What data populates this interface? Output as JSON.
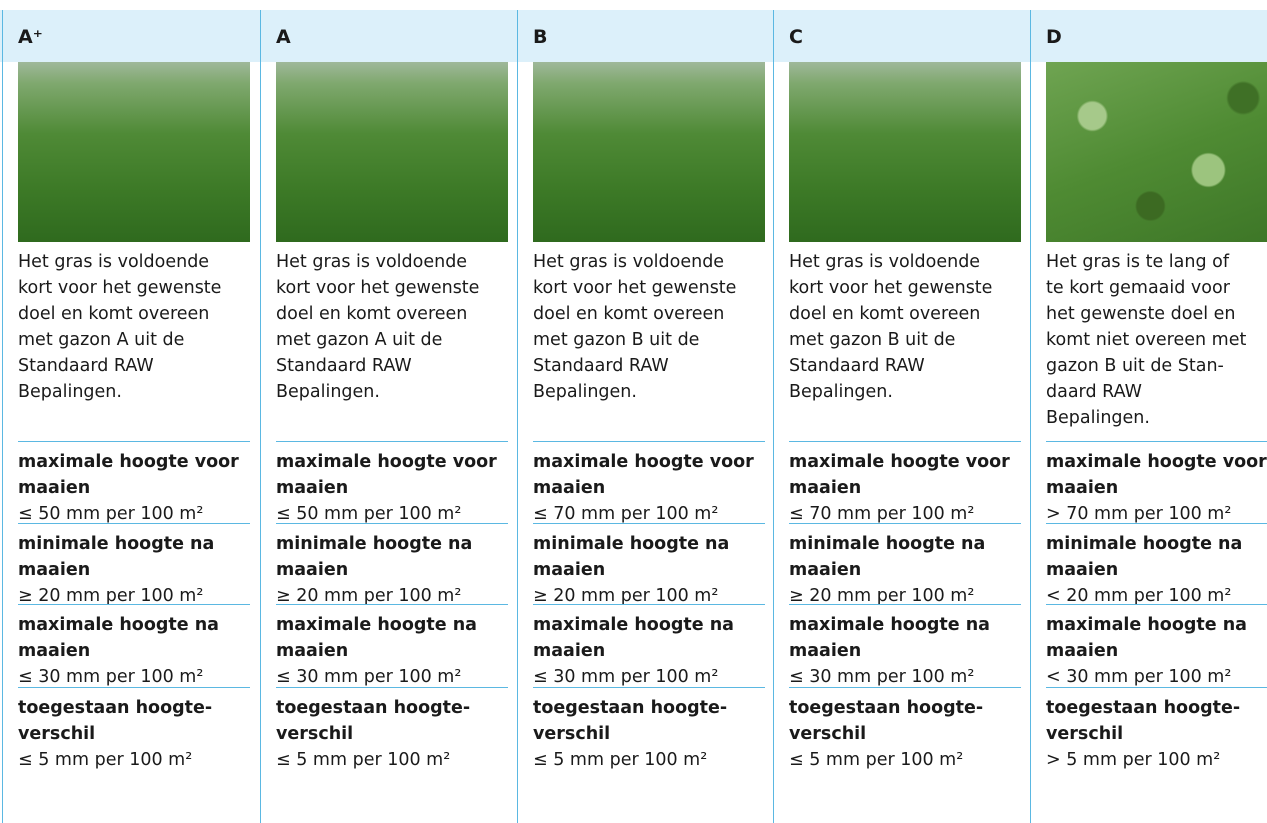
{
  "columns": [
    {
      "grade": "A⁺",
      "description_lines": [
        "Het gras is voldoende",
        "kort voor het gewenste",
        "doel en komt overeen",
        "met gazon A uit de",
        "Standaard RAW",
        "Bepalingen."
      ],
      "criteria": [
        {
          "label_lines": [
            "maximale hoogte voor",
            "maaien"
          ],
          "value": "≤ 50 mm per 100 m²"
        },
        {
          "label_lines": [
            "minimale hoogte na",
            "maaien"
          ],
          "value": "≥ 20 mm per 100 m²"
        },
        {
          "label_lines": [
            "maximale hoogte na",
            "maaien"
          ],
          "value": "≤ 30 mm per 100 m²"
        },
        {
          "label_lines": [
            "toegestaan hoogte-",
            "verschil"
          ],
          "value": "≤ 5 mm per 100 m²"
        }
      ]
    },
    {
      "grade": "A",
      "description_lines": [
        "Het gras is voldoende",
        "kort voor het gewenste",
        "doel en komt overeen",
        "met gazon A uit de",
        "Standaard RAW",
        "Bepalingen."
      ],
      "criteria": [
        {
          "label_lines": [
            "maximale hoogte voor",
            "maaien"
          ],
          "value": "≤ 50 mm per 100 m²"
        },
        {
          "label_lines": [
            "minimale hoogte na",
            "maaien"
          ],
          "value": "≥ 20 mm per 100 m²"
        },
        {
          "label_lines": [
            "maximale hoogte na",
            "maaien"
          ],
          "value": "≤ 30 mm per 100 m²"
        },
        {
          "label_lines": [
            "toegestaan hoogte-",
            "verschil"
          ],
          "value": "≤ 5 mm per 100 m²"
        }
      ]
    },
    {
      "grade": "B",
      "description_lines": [
        "Het gras is voldoende",
        "kort voor het gewenste",
        "doel en komt overeen",
        "met gazon B uit de",
        "Standaard RAW",
        "Bepalingen."
      ],
      "criteria": [
        {
          "label_lines": [
            "maximale hoogte voor",
            "maaien"
          ],
          "value": "≤ 70 mm per 100 m²"
        },
        {
          "label_lines": [
            "minimale hoogte na",
            "maaien"
          ],
          "value": "≥ 20 mm per 100 m²"
        },
        {
          "label_lines": [
            "maximale hoogte na",
            "maaien"
          ],
          "value": "≤ 30 mm per 100 m²"
        },
        {
          "label_lines": [
            "toegestaan hoogte-",
            "verschil"
          ],
          "value": "≤ 5 mm per 100 m²"
        }
      ]
    },
    {
      "grade": "C",
      "description_lines": [
        "Het gras is voldoende",
        "kort voor het gewenste",
        "doel en komt overeen",
        "met gazon B uit de",
        "Standaard RAW",
        "Bepalingen."
      ],
      "criteria": [
        {
          "label_lines": [
            "maximale hoogte voor",
            "maaien"
          ],
          "value": "≤ 70 mm per 100 m²"
        },
        {
          "label_lines": [
            "minimale hoogte na",
            "maaien"
          ],
          "value": "≥ 20 mm per 100 m²"
        },
        {
          "label_lines": [
            "maximale hoogte na",
            "maaien"
          ],
          "value": "≤ 30 mm per 100 m²"
        },
        {
          "label_lines": [
            "toegestaan hoogte-",
            "verschil"
          ],
          "value": "≤ 5 mm per 100 m²"
        }
      ]
    },
    {
      "grade": "D",
      "description_lines": [
        "Het gras is te lang of",
        "te kort gemaaid voor",
        "het gewenste doel en",
        "komt niet overeen met",
        "gazon B uit de Stan-",
        "daard RAW",
        "Bepalingen."
      ],
      "criteria": [
        {
          "label_lines": [
            "maximale hoogte voor",
            "maaien"
          ],
          "value": "> 70 mm per 100 m²"
        },
        {
          "label_lines": [
            "minimale hoogte na",
            "maaien"
          ],
          "value": "< 20 mm per 100 m²"
        },
        {
          "label_lines": [
            "maximale hoogte na",
            "maaien"
          ],
          "value": "< 30 mm per 100 m²"
        },
        {
          "label_lines": [
            "toegestaan hoogte-",
            "verschil"
          ],
          "value": "> 5 mm per 100 m²"
        }
      ]
    }
  ]
}
